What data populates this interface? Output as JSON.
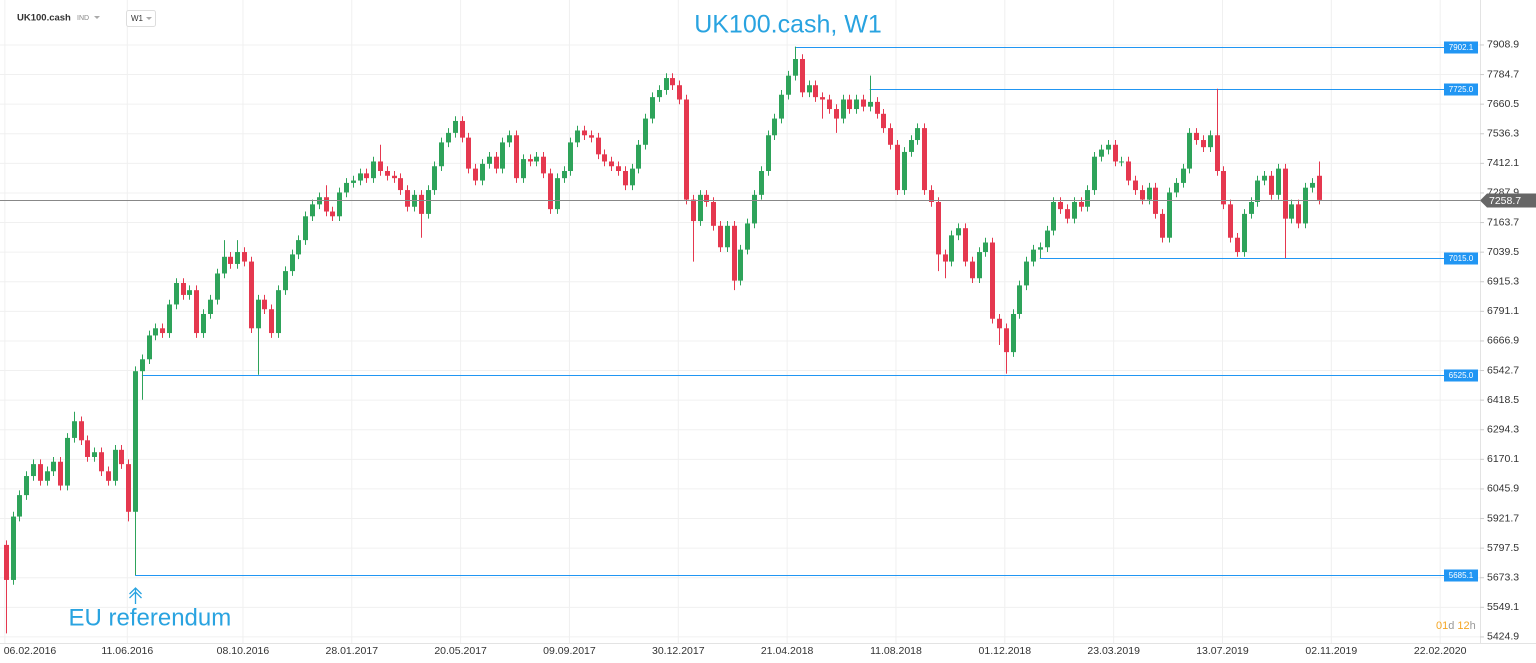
{
  "toolbar": {
    "symbol": "UK100.cash",
    "group": "IND",
    "timeframe": "W1"
  },
  "countdown": [
    "01",
    "d",
    "12",
    "h"
  ],
  "chart_data": {
    "type": "candlestick",
    "title": "UK100.cash, W1",
    "x": [
      "2016-02-07",
      "2016-02-14",
      "2016-02-21",
      "2016-02-28",
      "2016-03-06",
      "2016-03-13",
      "2016-03-20",
      "2016-03-27",
      "2016-04-03",
      "2016-04-10",
      "2016-04-17",
      "2016-04-24",
      "2016-05-01",
      "2016-05-08",
      "2016-05-15",
      "2016-05-22",
      "2016-05-29",
      "2016-06-05",
      "2016-06-12",
      "2016-06-19",
      "2016-06-26",
      "2016-07-03",
      "2016-07-10",
      "2016-07-17",
      "2016-07-24",
      "2016-07-31",
      "2016-08-07",
      "2016-08-14",
      "2016-08-21",
      "2016-08-28",
      "2016-09-04",
      "2016-09-11",
      "2016-09-18",
      "2016-09-25",
      "2016-10-02",
      "2016-10-09",
      "2016-10-16",
      "2016-10-23",
      "2016-10-30",
      "2016-11-06",
      "2016-11-13",
      "2016-11-20",
      "2016-11-27",
      "2016-12-04",
      "2016-12-11",
      "2016-12-18",
      "2016-12-25",
      "2017-01-01",
      "2017-01-08",
      "2017-01-15",
      "2017-01-22",
      "2017-01-29",
      "2017-02-05",
      "2017-02-12",
      "2017-02-19",
      "2017-02-26",
      "2017-03-05",
      "2017-03-12",
      "2017-03-19",
      "2017-03-26",
      "2017-04-02",
      "2017-04-09",
      "2017-04-16",
      "2017-04-23",
      "2017-04-30",
      "2017-05-07",
      "2017-05-14",
      "2017-05-21",
      "2017-05-28",
      "2017-06-04",
      "2017-06-11",
      "2017-06-18",
      "2017-06-25",
      "2017-07-02",
      "2017-07-09",
      "2017-07-16",
      "2017-07-23",
      "2017-07-30",
      "2017-08-06",
      "2017-08-13",
      "2017-08-20",
      "2017-08-27",
      "2017-09-03",
      "2017-09-10",
      "2017-09-17",
      "2017-09-24",
      "2017-10-01",
      "2017-10-08",
      "2017-10-15",
      "2017-10-22",
      "2017-10-29",
      "2017-11-05",
      "2017-11-12",
      "2017-11-19",
      "2017-11-26",
      "2017-12-03",
      "2017-12-10",
      "2017-12-17",
      "2017-12-24",
      "2017-12-31",
      "2018-01-07",
      "2018-01-14",
      "2018-01-21",
      "2018-01-28",
      "2018-02-04",
      "2018-02-11",
      "2018-02-18",
      "2018-02-25",
      "2018-03-04",
      "2018-03-11",
      "2018-03-18",
      "2018-03-25",
      "2018-04-01",
      "2018-04-08",
      "2018-04-15",
      "2018-04-22",
      "2018-04-29",
      "2018-05-06",
      "2018-05-13",
      "2018-05-20",
      "2018-05-27",
      "2018-06-03",
      "2018-06-10",
      "2018-06-17",
      "2018-06-24",
      "2018-07-01",
      "2018-07-08",
      "2018-07-15",
      "2018-07-22",
      "2018-07-29",
      "2018-08-05",
      "2018-08-12",
      "2018-08-19",
      "2018-08-26",
      "2018-09-02",
      "2018-09-09",
      "2018-09-16",
      "2018-09-23",
      "2018-09-30",
      "2018-10-07",
      "2018-10-14",
      "2018-10-21",
      "2018-10-28",
      "2018-11-04",
      "2018-11-11",
      "2018-11-18",
      "2018-11-25",
      "2018-12-02",
      "2018-12-09",
      "2018-12-16",
      "2018-12-23",
      "2018-12-30",
      "2019-01-06",
      "2019-01-13",
      "2019-01-20",
      "2019-01-27",
      "2019-02-03",
      "2019-02-10",
      "2019-02-17",
      "2019-02-24",
      "2019-03-03",
      "2019-03-10",
      "2019-03-17",
      "2019-03-24",
      "2019-03-31",
      "2019-04-07",
      "2019-04-14",
      "2019-04-21",
      "2019-04-28",
      "2019-05-05",
      "2019-05-12",
      "2019-05-19",
      "2019-05-26",
      "2019-06-02",
      "2019-06-09",
      "2019-06-16",
      "2019-06-23",
      "2019-06-30",
      "2019-07-07",
      "2019-07-14",
      "2019-07-21",
      "2019-07-28",
      "2019-08-04",
      "2019-08-11",
      "2019-08-18",
      "2019-08-25",
      "2019-09-01",
      "2019-09-08",
      "2019-09-15",
      "2019-09-22",
      "2019-09-29",
      "2019-10-06",
      "2019-10-13",
      "2019-10-20"
    ],
    "open": [
      5811,
      5664,
      5930,
      6020,
      6100,
      6150,
      6080,
      6120,
      6160,
      6060,
      6260,
      6330,
      6250,
      6180,
      6200,
      6120,
      6080,
      6210,
      6150,
      5950,
      6540,
      6590,
      6690,
      6720,
      6700,
      6820,
      6910,
      6860,
      6880,
      6700,
      6780,
      6840,
      6950,
      7020,
      6990,
      7040,
      7000,
      6720,
      6840,
      6800,
      6700,
      6880,
      6960,
      7030,
      7090,
      7190,
      7240,
      7270,
      7210,
      7190,
      7290,
      7330,
      7340,
      7370,
      7350,
      7420,
      7380,
      7360,
      7350,
      7300,
      7230,
      7280,
      7200,
      7300,
      7400,
      7500,
      7540,
      7590,
      7520,
      7390,
      7340,
      7410,
      7440,
      7390,
      7500,
      7530,
      7350,
      7430,
      7420,
      7440,
      7370,
      7220,
      7350,
      7380,
      7500,
      7550,
      7530,
      7520,
      7450,
      7420,
      7400,
      7380,
      7320,
      7390,
      7490,
      7600,
      7690,
      7720,
      7770,
      7740,
      7680,
      7260,
      7170,
      7280,
      7250,
      7150,
      7060,
      7150,
      6920,
      7050,
      7160,
      7280,
      7380,
      7530,
      7600,
      7700,
      7780,
      7850,
      7710,
      7740,
      7690,
      7680,
      7640,
      7600,
      7680,
      7640,
      7680,
      7650,
      7670,
      7620,
      7560,
      7490,
      7300,
      7460,
      7510,
      7560,
      7300,
      7250,
      7030,
      7000,
      7110,
      7140,
      7000,
      6930,
      7040,
      7080,
      6760,
      6720,
      6620,
      6780,
      6900,
      7000,
      7050,
      7060,
      7130,
      7250,
      7220,
      7180,
      7250,
      7230,
      7300,
      7440,
      7470,
      7490,
      7420,
      7420,
      7340,
      7300,
      7260,
      7310,
      7200,
      7100,
      7290,
      7330,
      7390,
      7540,
      7510,
      7480,
      7530,
      7380,
      7240,
      7100,
      7040,
      7200,
      7250,
      7340,
      7360,
      7280,
      7390,
      7180,
      7240,
      7160,
      7310,
      7360
    ],
    "high": [
      5830,
      5950,
      6040,
      6120,
      6170,
      6170,
      6140,
      6180,
      6180,
      6280,
      6370,
      6350,
      6270,
      6220,
      6220,
      6140,
      6230,
      6230,
      6170,
      6560,
      6610,
      6710,
      6740,
      6740,
      6840,
      6930,
      6930,
      6900,
      6900,
      6800,
      6860,
      6970,
      7090,
      7040,
      7090,
      7060,
      7020,
      6860,
      6860,
      6820,
      6900,
      6980,
      7050,
      7110,
      7210,
      7260,
      7290,
      7320,
      7230,
      7310,
      7350,
      7360,
      7390,
      7390,
      7440,
      7490,
      7400,
      7380,
      7370,
      7320,
      7300,
      7300,
      7320,
      7420,
      7520,
      7560,
      7610,
      7610,
      7540,
      7410,
      7430,
      7460,
      7460,
      7520,
      7550,
      7550,
      7450,
      7450,
      7460,
      7460,
      7390,
      7370,
      7400,
      7520,
      7570,
      7570,
      7550,
      7540,
      7470,
      7440,
      7420,
      7400,
      7410,
      7510,
      7620,
      7710,
      7740,
      7790,
      7790,
      7760,
      7700,
      7280,
      7300,
      7300,
      7270,
      7170,
      7170,
      7170,
      7070,
      7180,
      7300,
      7400,
      7550,
      7620,
      7720,
      7800,
      7902.1,
      7870,
      7760,
      7760,
      7710,
      7700,
      7660,
      7700,
      7700,
      7700,
      7700,
      7780,
      7690,
      7640,
      7580,
      7510,
      7480,
      7530,
      7580,
      7580,
      7320,
      7270,
      7050,
      7130,
      7160,
      7160,
      7020,
      7060,
      7100,
      7100,
      6780,
      6740,
      6800,
      6920,
      7020,
      7070,
      7080,
      7150,
      7270,
      7270,
      7240,
      7270,
      7270,
      7320,
      7460,
      7490,
      7510,
      7510,
      7440,
      7440,
      7360,
      7320,
      7330,
      7330,
      7220,
      7310,
      7350,
      7410,
      7560,
      7560,
      7530,
      7550,
      7725,
      7400,
      7260,
      7120,
      7220,
      7270,
      7360,
      7380,
      7380,
      7410,
      7410,
      7260,
      7260,
      7330,
      7350,
      7420
    ],
    "low": [
      5440,
      5644,
      5910,
      6000,
      6080,
      6060,
      6060,
      6100,
      6040,
      6040,
      6240,
      6230,
      6160,
      6160,
      6100,
      6060,
      6060,
      6130,
      5910,
      5685,
      6420,
      6570,
      6670,
      6680,
      6680,
      6800,
      6840,
      6840,
      6680,
      6680,
      6760,
      6820,
      6930,
      6970,
      6970,
      6980,
      6700,
      6525,
      6780,
      6680,
      6680,
      6860,
      6940,
      7010,
      7070,
      7170,
      7220,
      7190,
      7170,
      7170,
      7270,
      7310,
      7320,
      7330,
      7330,
      7360,
      7340,
      7330,
      7280,
      7210,
      7210,
      7100,
      7180,
      7280,
      7380,
      7480,
      7520,
      7500,
      7370,
      7320,
      7320,
      7390,
      7370,
      7370,
      7480,
      7330,
      7330,
      7400,
      7400,
      7350,
      7200,
      7200,
      7330,
      7360,
      7480,
      7510,
      7500,
      7430,
      7400,
      7380,
      7360,
      7300,
      7300,
      7370,
      7470,
      7580,
      7670,
      7700,
      7720,
      7660,
      7240,
      7000,
      7150,
      7230,
      7130,
      7040,
      7040,
      6880,
      6900,
      7030,
      7140,
      7260,
      7360,
      7510,
      7580,
      7680,
      7760,
      7690,
      7690,
      7670,
      7600,
      7620,
      7540,
      7580,
      7620,
      7620,
      7630,
      7630,
      7600,
      7540,
      7470,
      7280,
      7280,
      7440,
      7490,
      7280,
      7230,
      6960,
      6930,
      6980,
      7090,
      6980,
      6910,
      6910,
      7020,
      6740,
      6650,
      6530,
      6600,
      6760,
      6880,
      6980,
      7015,
      7040,
      7110,
      7200,
      7160,
      7160,
      7210,
      7210,
      7280,
      7420,
      7450,
      7400,
      7400,
      7320,
      7280,
      7240,
      7240,
      7180,
      7080,
      7080,
      7270,
      7310,
      7370,
      7490,
      7460,
      7460,
      7360,
      7220,
      7080,
      7020,
      7020,
      7180,
      7230,
      7320,
      7260,
      7260,
      7015,
      7160,
      7140,
      7140,
      7290,
      7240
    ],
    "close": [
      5664,
      5930,
      6020,
      6100,
      6150,
      6080,
      6120,
      6160,
      6060,
      6260,
      6330,
      6250,
      6180,
      6200,
      6120,
      6080,
      6210,
      6150,
      5950,
      6540,
      6590,
      6690,
      6720,
      6700,
      6820,
      6910,
      6860,
      6880,
      6700,
      6780,
      6840,
      6950,
      7020,
      6990,
      7040,
      7000,
      6720,
      6840,
      6800,
      6700,
      6880,
      6960,
      7030,
      7090,
      7190,
      7240,
      7270,
      7210,
      7190,
      7290,
      7330,
      7340,
      7370,
      7350,
      7420,
      7380,
      7360,
      7350,
      7300,
      7230,
      7280,
      7200,
      7300,
      7400,
      7500,
      7540,
      7590,
      7520,
      7390,
      7340,
      7410,
      7440,
      7390,
      7500,
      7530,
      7350,
      7430,
      7420,
      7440,
      7370,
      7220,
      7350,
      7380,
      7500,
      7550,
      7530,
      7520,
      7450,
      7420,
      7400,
      7380,
      7320,
      7390,
      7490,
      7600,
      7690,
      7720,
      7770,
      7740,
      7680,
      7260,
      7170,
      7280,
      7250,
      7150,
      7060,
      7150,
      6920,
      7050,
      7160,
      7280,
      7380,
      7530,
      7600,
      7700,
      7780,
      7850,
      7710,
      7740,
      7690,
      7680,
      7640,
      7600,
      7680,
      7640,
      7680,
      7650,
      7670,
      7620,
      7560,
      7490,
      7300,
      7460,
      7510,
      7560,
      7300,
      7250,
      7030,
      7000,
      7110,
      7140,
      7000,
      6930,
      7040,
      7080,
      6760,
      6720,
      6620,
      6780,
      6900,
      7000,
      7050,
      7060,
      7130,
      7250,
      7220,
      7180,
      7250,
      7230,
      7300,
      7440,
      7470,
      7490,
      7420,
      7420,
      7340,
      7300,
      7260,
      7310,
      7200,
      7100,
      7290,
      7330,
      7390,
      7540,
      7510,
      7480,
      7530,
      7380,
      7240,
      7100,
      7040,
      7200,
      7250,
      7340,
      7360,
      7280,
      7390,
      7180,
      7240,
      7160,
      7310,
      7330,
      7258.7
    ],
    "up_color": "#2ea35a",
    "down_color": "#e5384f",
    "ylim": [
      5412,
      8064
    ],
    "yticks": [
      7908.9,
      7784.7,
      7660.5,
      7536.3,
      7412.1,
      7287.9,
      7163.7,
      7039.5,
      6915.3,
      6791.1,
      6666.9,
      6542.7,
      6418.5,
      6294.3,
      6170.1,
      6045.9,
      5921.7,
      5797.5,
      5673.3,
      5549.1,
      5424.9
    ],
    "xlim": [
      "2016-02-01",
      "2020-04-03"
    ],
    "xticks": [
      {
        "value": "2016-02-06",
        "label": "06.02.2016"
      },
      {
        "value": "2016-06-11",
        "label": "11.06.2016"
      },
      {
        "value": "2016-10-08",
        "label": "08.10.2016"
      },
      {
        "value": "2017-01-28",
        "label": "28.01.2017"
      },
      {
        "value": "2017-05-20",
        "label": "20.05.2017"
      },
      {
        "value": "2017-09-09",
        "label": "09.09.2017"
      },
      {
        "value": "2017-12-30",
        "label": "30.12.2017"
      },
      {
        "value": "2018-04-21",
        "label": "21.04.2018"
      },
      {
        "value": "2018-08-11",
        "label": "11.08.2018"
      },
      {
        "value": "2018-12-01",
        "label": "01.12.2018"
      },
      {
        "value": "2019-03-23",
        "label": "23.03.2019"
      },
      {
        "value": "2019-07-13",
        "label": "13.07.2019"
      },
      {
        "value": "2019-11-02",
        "label": "02.11.2019"
      },
      {
        "value": "2020-02-22",
        "label": "22.02.2020"
      }
    ],
    "grid": true,
    "level_color": "#2196f3",
    "levels": [
      {
        "value": 7902.1,
        "start": "2018-04-29"
      },
      {
        "value": 7725,
        "label": "7725.0",
        "start": "2018-07-15"
      },
      {
        "value": 7015,
        "label": "7015.0",
        "start": "2019-01-06"
      },
      {
        "value": 6525,
        "label": "6525.0",
        "start": "2016-06-26"
      },
      {
        "value": 5685.1,
        "start": "2016-06-19"
      }
    ],
    "annotations": [
      {
        "text": "EU referendum",
        "x": "2016-06-19"
      }
    ]
  }
}
